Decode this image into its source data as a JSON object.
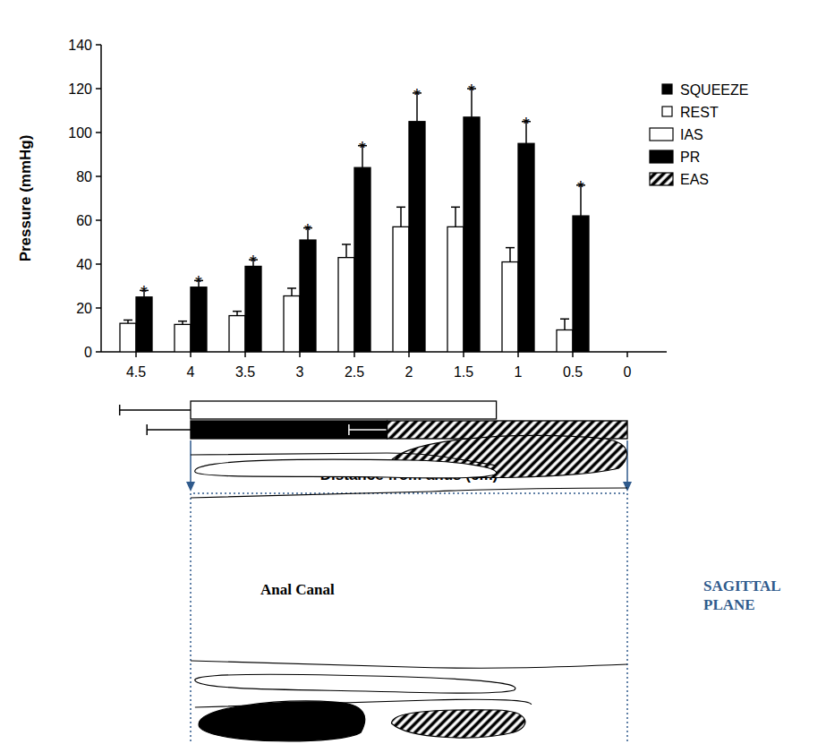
{
  "chart_data": {
    "type": "bar",
    "y_label": "Pressure (mmHg)",
    "x_label": "Distance from anus (cm)",
    "categories": [
      "4.5",
      "4",
      "3.5",
      "3",
      "2.5",
      "2",
      "1.5",
      "1",
      "0.5",
      "0"
    ],
    "series": [
      {
        "name": "REST",
        "color": "#ffffff",
        "values": [
          13,
          12.5,
          16.5,
          25.5,
          43,
          57,
          57,
          41,
          10,
          null
        ],
        "errors": [
          1.5,
          1.5,
          2,
          3.5,
          6,
          9,
          9,
          6.5,
          5,
          null
        ]
      },
      {
        "name": "SQUEEZE",
        "color": "#000000",
        "values": [
          25,
          29.5,
          39,
          51,
          84,
          105,
          107,
          95,
          62,
          null
        ],
        "errors": [
          3,
          3,
          3,
          5.5,
          10,
          13,
          13,
          10,
          14,
          null
        ],
        "significance": [
          "*",
          "*",
          "*",
          "*",
          "*",
          "*",
          "*",
          "*",
          "*",
          null
        ]
      }
    ],
    "ylim": [
      0,
      140
    ],
    "yticks": [
      0,
      20,
      40,
      60,
      80,
      100,
      120,
      140
    ],
    "legend": "right",
    "muscles": [
      {
        "name": "IAS",
        "color": "#ffffff",
        "start": 4.0,
        "end": 1.2,
        "start_error": 0.65
      },
      {
        "name": "PR",
        "color": "#000000",
        "start": 4.0,
        "end": 2.2,
        "start_error": 0.4
      },
      {
        "name": "EAS",
        "color": "#000000",
        "fill": "hatched",
        "start": 2.2,
        "end": 0,
        "start_error": 0.35
      }
    ]
  },
  "diagram": {
    "label": "Anal Canal",
    "plane": "SAGITTAL PLANE"
  }
}
